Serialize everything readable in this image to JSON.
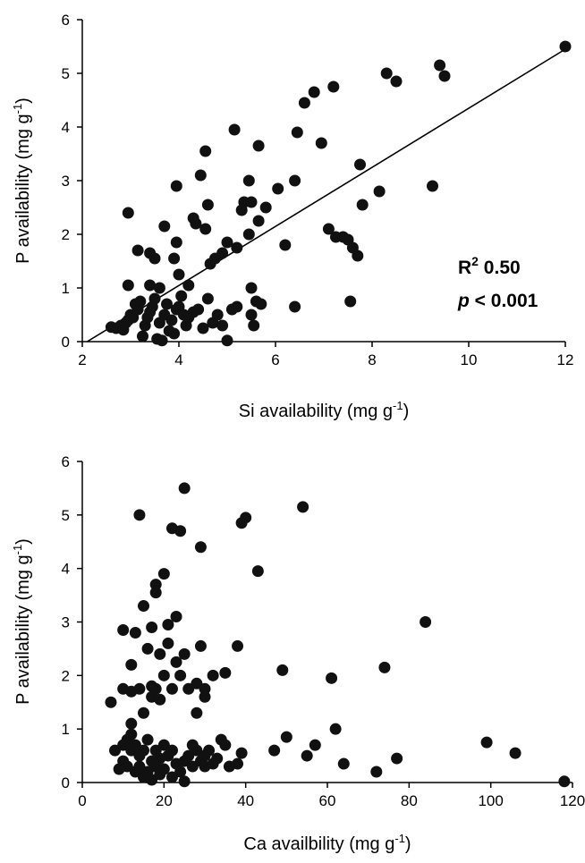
{
  "chart_data": [
    {
      "type": "scatter",
      "xlabel": "Si availability (mg g",
      "xlabel_sup": "-1",
      "xlabel_end": ")",
      "ylabel": "P availability (mg g",
      "ylabel_sup": "-1",
      "ylabel_end": ")",
      "xlim": [
        2,
        12
      ],
      "ylim": [
        0,
        6
      ],
      "xticks": [
        2,
        4,
        6,
        8,
        10,
        12
      ],
      "yticks": [
        0,
        1,
        2,
        3,
        4,
        5,
        6
      ],
      "annotation": {
        "r2_label": "R",
        "r2_sup": "2",
        "r2_value": " 0.50",
        "p_symbol": "p",
        "p_value": " < 0.001"
      },
      "trendline": {
        "x": [
          2.1,
          12.0
        ],
        "y": [
          0.0,
          5.45
        ]
      },
      "points": [
        [
          2.6,
          0.27
        ],
        [
          2.7,
          0.25
        ],
        [
          2.8,
          0.3
        ],
        [
          2.85,
          0.22
        ],
        [
          2.9,
          0.35
        ],
        [
          2.95,
          0.4
        ],
        [
          3.0,
          0.5
        ],
        [
          3.05,
          0.45
        ],
        [
          3.1,
          0.7
        ],
        [
          3.15,
          0.6
        ],
        [
          3.2,
          0.75
        ],
        [
          3.25,
          0.1
        ],
        [
          3.3,
          0.3
        ],
        [
          3.35,
          0.45
        ],
        [
          3.4,
          0.55
        ],
        [
          3.45,
          0.65
        ],
        [
          3.5,
          0.8
        ],
        [
          3.55,
          0.05
        ],
        [
          3.6,
          0.35
        ],
        [
          3.65,
          0.02
        ],
        [
          3.7,
          0.5
        ],
        [
          3.75,
          0.7
        ],
        [
          3.8,
          0.2
        ],
        [
          3.85,
          0.4
        ],
        [
          3.9,
          0.15
        ],
        [
          3.95,
          0.6
        ],
        [
          4.0,
          0.65
        ],
        [
          4.05,
          0.85
        ],
        [
          4.1,
          0.5
        ],
        [
          4.15,
          0.3
        ],
        [
          4.2,
          0.45
        ],
        [
          4.3,
          0.55
        ],
        [
          4.4,
          0.6
        ],
        [
          4.5,
          0.25
        ],
        [
          4.6,
          0.8
        ],
        [
          4.7,
          0.35
        ],
        [
          4.8,
          0.5
        ],
        [
          4.9,
          0.3
        ],
        [
          5.0,
          0.02
        ],
        [
          5.1,
          0.6
        ],
        [
          5.2,
          0.65
        ],
        [
          5.5,
          0.5
        ],
        [
          5.55,
          0.3
        ],
        [
          5.6,
          0.75
        ],
        [
          5.7,
          0.7
        ],
        [
          6.4,
          0.65
        ],
        [
          7.55,
          0.75
        ],
        [
          2.95,
          1.05
        ],
        [
          3.4,
          1.05
        ],
        [
          3.6,
          1.0
        ],
        [
          4.2,
          1.05
        ],
        [
          5.5,
          1.0
        ],
        [
          3.15,
          1.7
        ],
        [
          3.4,
          1.65
        ],
        [
          3.5,
          1.55
        ],
        [
          3.9,
          1.55
        ],
        [
          4.0,
          1.25
        ],
        [
          4.65,
          1.45
        ],
        [
          4.75,
          1.55
        ],
        [
          4.9,
          1.65
        ],
        [
          5.0,
          1.85
        ],
        [
          5.2,
          1.75
        ],
        [
          2.95,
          2.4
        ],
        [
          3.7,
          2.15
        ],
        [
          3.95,
          1.85
        ],
        [
          4.3,
          2.3
        ],
        [
          4.35,
          2.2
        ],
        [
          4.55,
          2.1
        ],
        [
          4.6,
          2.55
        ],
        [
          5.3,
          2.45
        ],
        [
          5.35,
          2.6
        ],
        [
          5.45,
          2.0
        ],
        [
          5.5,
          2.6
        ],
        [
          5.65,
          2.25
        ],
        [
          5.8,
          2.5
        ],
        [
          6.2,
          1.8
        ],
        [
          7.1,
          2.1
        ],
        [
          7.25,
          1.95
        ],
        [
          7.4,
          1.95
        ],
        [
          7.5,
          1.9
        ],
        [
          7.6,
          1.75
        ],
        [
          7.7,
          1.6
        ],
        [
          7.8,
          2.55
        ],
        [
          3.95,
          2.9
        ],
        [
          4.45,
          3.1
        ],
        [
          5.45,
          3.0
        ],
        [
          6.05,
          2.85
        ],
        [
          6.4,
          3.0
        ],
        [
          7.75,
          3.3
        ],
        [
          8.15,
          2.8
        ],
        [
          9.25,
          2.9
        ],
        [
          4.55,
          3.55
        ],
        [
          5.15,
          3.95
        ],
        [
          5.65,
          3.65
        ],
        [
          6.45,
          3.9
        ],
        [
          6.95,
          3.7
        ],
        [
          6.6,
          4.45
        ],
        [
          6.8,
          4.65
        ],
        [
          7.2,
          4.75
        ],
        [
          8.3,
          5.0
        ],
        [
          8.5,
          4.85
        ],
        [
          9.4,
          5.15
        ],
        [
          9.5,
          4.95
        ],
        [
          12.0,
          5.5
        ]
      ]
    },
    {
      "type": "scatter",
      "xlabel": "Ca availbility (mg g",
      "xlabel_sup": "-1",
      "xlabel_end": ")",
      "ylabel": "P availability (mg g",
      "ylabel_sup": "-1",
      "ylabel_end": ")",
      "xlim": [
        0,
        120
      ],
      "ylim": [
        0,
        6
      ],
      "xticks": [
        0,
        20,
        40,
        60,
        80,
        100,
        120
      ],
      "yticks": [
        0,
        1,
        2,
        3,
        4,
        5,
        6
      ],
      "points": [
        [
          8,
          0.6
        ],
        [
          9,
          0.25
        ],
        [
          10,
          0.7
        ],
        [
          10,
          0.4
        ],
        [
          11,
          0.8
        ],
        [
          11,
          0.3
        ],
        [
          12,
          0.6
        ],
        [
          12,
          0.9
        ],
        [
          13,
          0.7
        ],
        [
          13,
          0.2
        ],
        [
          14,
          0.5
        ],
        [
          14,
          0.3
        ],
        [
          15,
          0.1
        ],
        [
          15,
          0.6
        ],
        [
          16,
          0.8
        ],
        [
          16,
          0.2
        ],
        [
          17,
          0.4
        ],
        [
          17,
          0.05
        ],
        [
          18,
          0.3
        ],
        [
          18,
          0.6
        ],
        [
          19,
          0.15
        ],
        [
          19,
          0.45
        ],
        [
          20,
          0.7
        ],
        [
          20,
          0.25
        ],
        [
          21,
          0.5
        ],
        [
          22,
          0.1
        ],
        [
          22,
          0.6
        ],
        [
          23,
          0.35
        ],
        [
          24,
          0.2
        ],
        [
          25,
          0.4
        ],
        [
          25,
          0.02
        ],
        [
          26,
          0.5
        ],
        [
          27,
          0.3
        ],
        [
          27,
          0.7
        ],
        [
          28,
          0.6
        ],
        [
          29,
          0.4
        ],
        [
          30,
          0.5
        ],
        [
          30,
          0.3
        ],
        [
          31,
          0.6
        ],
        [
          32,
          0.35
        ],
        [
          33,
          0.45
        ],
        [
          34,
          0.8
        ],
        [
          35,
          0.7
        ],
        [
          36,
          0.3
        ],
        [
          38,
          0.35
        ],
        [
          39,
          0.55
        ],
        [
          47,
          0.6
        ],
        [
          50,
          0.85
        ],
        [
          55,
          0.5
        ],
        [
          57,
          0.7
        ],
        [
          62,
          1.0
        ],
        [
          64,
          0.35
        ],
        [
          72,
          0.2
        ],
        [
          77,
          0.45
        ],
        [
          99,
          0.75
        ],
        [
          106,
          0.55
        ],
        [
          118,
          0.02
        ],
        [
          12,
          1.1
        ],
        [
          15,
          1.3
        ],
        [
          17,
          1.6
        ],
        [
          19,
          1.55
        ],
        [
          28,
          1.3
        ],
        [
          30,
          1.6
        ],
        [
          7,
          1.5
        ],
        [
          10,
          1.75
        ],
        [
          12,
          1.7
        ],
        [
          14,
          1.75
        ],
        [
          17,
          1.8
        ],
        [
          18,
          1.75
        ],
        [
          20,
          2.0
        ],
        [
          22,
          1.75
        ],
        [
          24,
          2.0
        ],
        [
          26,
          1.75
        ],
        [
          28,
          1.85
        ],
        [
          30,
          1.75
        ],
        [
          32,
          2.0
        ],
        [
          35,
          2.05
        ],
        [
          12,
          2.2
        ],
        [
          16,
          2.5
        ],
        [
          19,
          2.4
        ],
        [
          21,
          2.6
        ],
        [
          23,
          2.25
        ],
        [
          25,
          2.4
        ],
        [
          29,
          2.55
        ],
        [
          38,
          2.55
        ],
        [
          49,
          2.1
        ],
        [
          61,
          1.95
        ],
        [
          74,
          2.15
        ],
        [
          10,
          2.85
        ],
        [
          13,
          2.8
        ],
        [
          17,
          2.9
        ],
        [
          21,
          2.95
        ],
        [
          23,
          3.1
        ],
        [
          84,
          3.0
        ],
        [
          15,
          3.3
        ],
        [
          18,
          3.55
        ],
        [
          18,
          3.7
        ],
        [
          20,
          3.9
        ],
        [
          29,
          4.4
        ],
        [
          43,
          3.95
        ],
        [
          14,
          5.0
        ],
        [
          22,
          4.75
        ],
        [
          24,
          4.7
        ],
        [
          25,
          5.5
        ],
        [
          39,
          4.85
        ],
        [
          40,
          4.95
        ],
        [
          54,
          5.15
        ]
      ]
    }
  ]
}
